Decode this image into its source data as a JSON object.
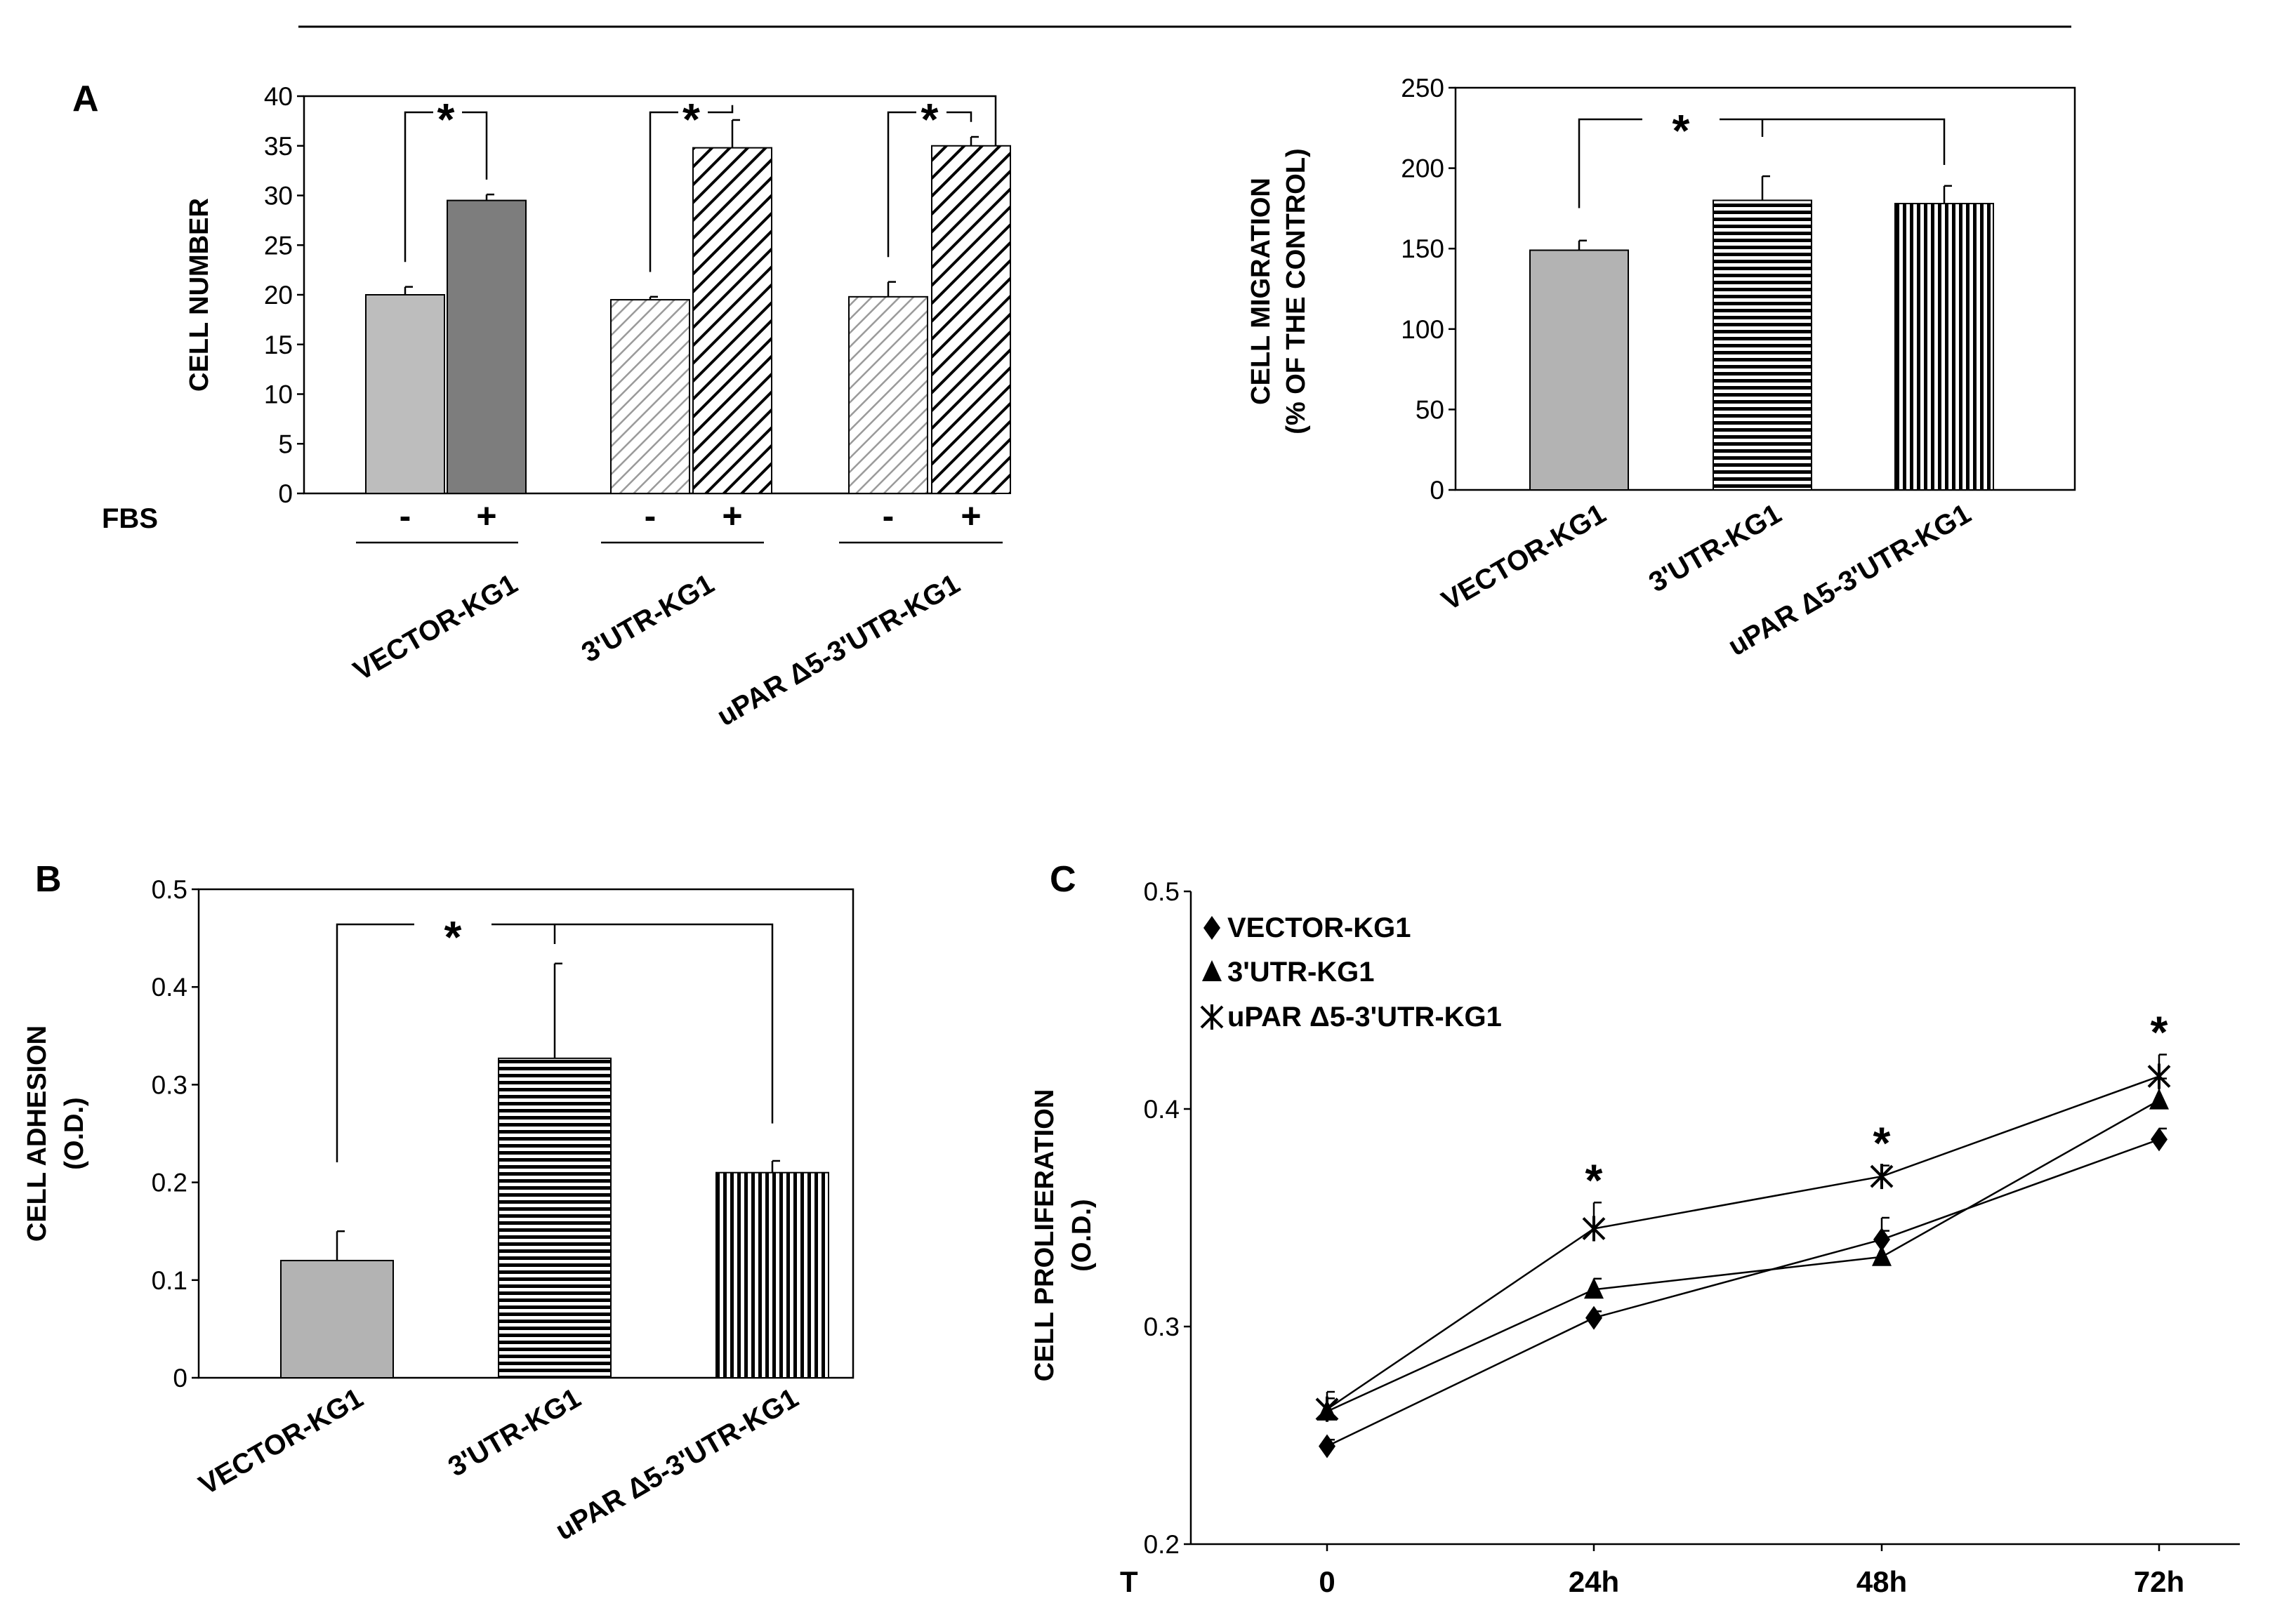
{
  "panels": {
    "a": "A",
    "b": "B",
    "c": "C"
  },
  "colors": {
    "light_gray": "#bdbdbd",
    "dark_gray": "#7d7d7d",
    "mid_gray": "#b3b3b3",
    "black": "#000000"
  },
  "chart_data": [
    {
      "id": "a-number",
      "type": "bar",
      "ylabel": "CELL NUMBER",
      "ylim": [
        0,
        40
      ],
      "yticks": [
        0,
        5,
        10,
        15,
        20,
        25,
        30,
        35,
        40
      ],
      "fbs_label": "FBS",
      "groups": [
        "VECTOR-KG1",
        "3'UTR-KG1",
        "uPAR Δ5-3'UTR-KG1"
      ],
      "fbs_signs": [
        "-",
        "+"
      ],
      "series": [
        {
          "name": "FBS -",
          "values": [
            20,
            19.5,
            19.8
          ],
          "errors": [
            0.8,
            0.3,
            1.5
          ]
        },
        {
          "name": "FBS +",
          "values": [
            29.5,
            34.8,
            35
          ],
          "errors": [
            0.6,
            2.8,
            0.9
          ]
        }
      ],
      "significance": [
        "*",
        "*",
        "*"
      ]
    },
    {
      "id": "a-migration",
      "type": "bar",
      "ylabel_lines": [
        "CELL MIGRATION",
        "(% OF THE CONTROL)"
      ],
      "ylim": [
        0,
        250
      ],
      "yticks": [
        0,
        50,
        100,
        150,
        200,
        250
      ],
      "categories": [
        "VECTOR-KG1",
        "3'UTR-KG1",
        "uPAR Δ5-3'UTR-KG1"
      ],
      "values": [
        149,
        180,
        178
      ],
      "errors": [
        6,
        15,
        11
      ],
      "significance": "*"
    },
    {
      "id": "b-adhesion",
      "type": "bar",
      "ylabel_lines": [
        "CELL ADHESION",
        "(O.D.)"
      ],
      "ylim": [
        0,
        0.5
      ],
      "yticks": [
        "0",
        "0.1",
        "0.2",
        "0.3",
        "0.4",
        "0.5"
      ],
      "categories": [
        "VECTOR-KG1",
        "3'UTR-KG1",
        "uPAR Δ5-3'UTR-KG1"
      ],
      "values": [
        0.12,
        0.327,
        0.21
      ],
      "errors": [
        0.03,
        0.097,
        0.012
      ],
      "significance": "*"
    },
    {
      "id": "c-proliferation",
      "type": "line",
      "ylabel_lines": [
        "CELL PROLIFERATION",
        "(O.D.)"
      ],
      "ylim": [
        0.2,
        0.5
      ],
      "yticks": [
        "0.2",
        "0.3",
        "0.4",
        "0.5"
      ],
      "x_label": "T",
      "x": [
        "0",
        "24h",
        "48h",
        "72h"
      ],
      "series": [
        {
          "name": "VECTOR-KG1",
          "marker": "diamond",
          "values": [
            0.245,
            0.304,
            0.34,
            0.386
          ],
          "errors": [
            0.003,
            0.003,
            0.01,
            0.005
          ]
        },
        {
          "name": "3'UTR-KG1",
          "marker": "triangle",
          "values": [
            0.261,
            0.317,
            0.332,
            0.404
          ],
          "errors": [
            0.006,
            0.005,
            0.012,
            0.01
          ]
        },
        {
          "name": "uPAR Δ5-3'UTR-KG1",
          "marker": "asterisk",
          "values": [
            0.262,
            0.345,
            0.369,
            0.415
          ],
          "errors": [
            0.008,
            0.012,
            0.005,
            0.01
          ]
        }
      ],
      "significance": [
        "*",
        "*",
        "*"
      ]
    }
  ]
}
